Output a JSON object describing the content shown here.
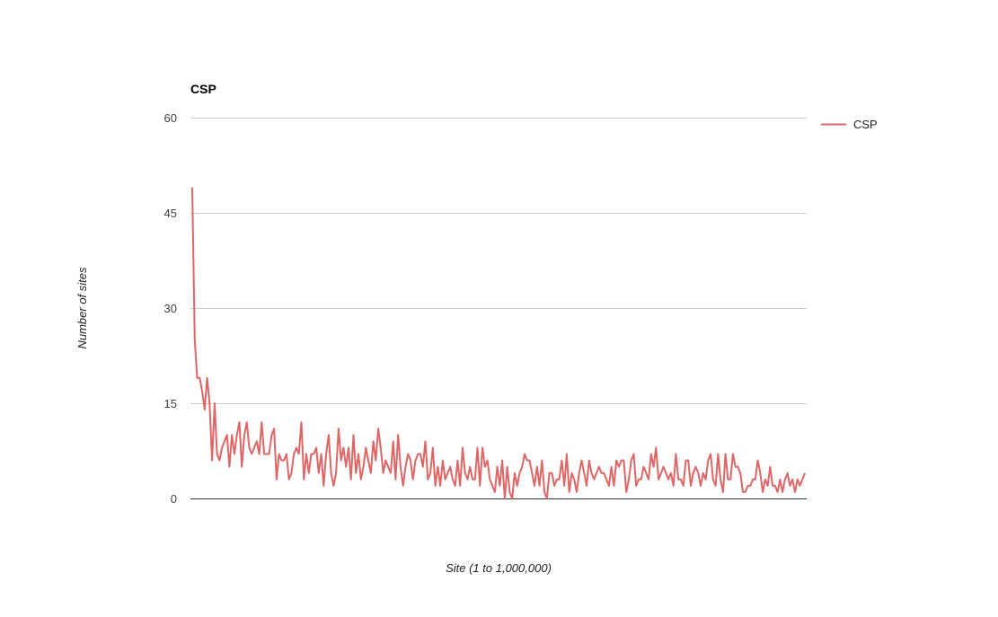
{
  "chart_data": {
    "type": "line",
    "title": "CSP",
    "xlabel": "Site (1 to 1,000,000)",
    "ylabel": "Number of sites",
    "ylim": [
      0,
      60
    ],
    "yticks": [
      "0",
      "15",
      "30",
      "45",
      "60"
    ],
    "grid": true,
    "legend": "right",
    "series": [
      {
        "name": "CSP",
        "color": "#e06666",
        "values": [
          49,
          25,
          19,
          19,
          17,
          14,
          19,
          15,
          6,
          15,
          7,
          6,
          8,
          9,
          10,
          5,
          10,
          7,
          10,
          12,
          5,
          10,
          12,
          8,
          7,
          8,
          9,
          7,
          12,
          7,
          7,
          7,
          10,
          11,
          3,
          7,
          6,
          6,
          7,
          3,
          4,
          7,
          8,
          7,
          12,
          3,
          7,
          4,
          7,
          7,
          8,
          4,
          7,
          2,
          7,
          10,
          4,
          2,
          4,
          11,
          6,
          8,
          5,
          8,
          3,
          10,
          4,
          7,
          3,
          5,
          8,
          6,
          4,
          9,
          6,
          11,
          8,
          4,
          6,
          5,
          4,
          9,
          3,
          10,
          5,
          2,
          5,
          7,
          6,
          3,
          6,
          7,
          7,
          5,
          9,
          3,
          4,
          8,
          2,
          5,
          2,
          6,
          3,
          4,
          5,
          3,
          2,
          6,
          2,
          8,
          4,
          3,
          5,
          3,
          3,
          8,
          2,
          8,
          5,
          6,
          3,
          2,
          1,
          5,
          2,
          6,
          0,
          5,
          1,
          0,
          4,
          2,
          4,
          5,
          7,
          6,
          6,
          4,
          2,
          5,
          2,
          6,
          1,
          0,
          4,
          4,
          2,
          3,
          3,
          6,
          2,
          7,
          1,
          4,
          3,
          1,
          4,
          6,
          4,
          2,
          6,
          4,
          3,
          4,
          5,
          4,
          4,
          3,
          2,
          5,
          2,
          6,
          5,
          6,
          6,
          1,
          3,
          6,
          7,
          2,
          3,
          3,
          5,
          4,
          3,
          7,
          5,
          8,
          3,
          4,
          5,
          4,
          3,
          4,
          2,
          7,
          3,
          3,
          2,
          6,
          6,
          2,
          4,
          5,
          4,
          2,
          4,
          3,
          6,
          7,
          3,
          2,
          7,
          3,
          1,
          7,
          3,
          3,
          7,
          5,
          5,
          4,
          1,
          1,
          2,
          2,
          3,
          3,
          6,
          4,
          1,
          3,
          2,
          5,
          2,
          2,
          1,
          3,
          1,
          3,
          4,
          2,
          3,
          1,
          3,
          2,
          3,
          4
        ]
      }
    ]
  }
}
